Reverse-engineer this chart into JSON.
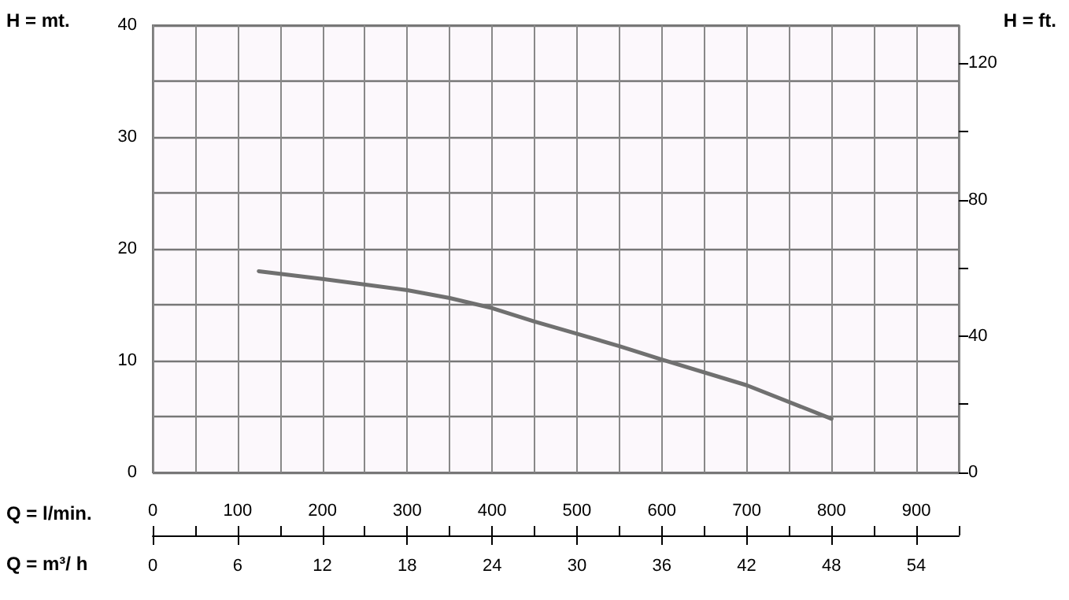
{
  "chart_data": {
    "type": "line",
    "xlabel": "Q = l/min.",
    "x2label": "Q = m³/ h",
    "ylabel": "H = mt.",
    "y2label": "H = ft.",
    "x": [
      125,
      200,
      300,
      350,
      400,
      450,
      500,
      550,
      600,
      700,
      800
    ],
    "series": [
      {
        "color": "#707070",
        "values": [
          18,
          17.3,
          16.3,
          15.6,
          14.7,
          13.5,
          12.4,
          11.3,
          10.1,
          7.8,
          4.8
        ]
      }
    ],
    "xlim": [
      0,
      950
    ],
    "xticks": [
      0,
      {
        "value": 50,
        "label": null
      },
      100,
      {
        "value": 150,
        "label": null
      },
      200,
      {
        "value": 250,
        "label": null
      },
      300,
      {
        "value": 350,
        "label": null
      },
      400,
      {
        "value": 450,
        "label": null
      },
      500,
      {
        "value": 550,
        "label": null
      },
      600,
      {
        "value": 650,
        "label": null
      },
      700,
      {
        "value": 750,
        "label": null
      },
      800,
      {
        "value": 850,
        "label": null
      },
      900,
      {
        "value": 950,
        "label": null
      }
    ],
    "x2lim": [
      0,
      57
    ],
    "x2ticks": [
      0,
      6,
      12,
      18,
      24,
      30,
      36,
      42,
      48,
      54
    ],
    "ylim": [
      0,
      40
    ],
    "yticks": [
      0,
      {
        "value": 5,
        "label": null
      },
      10,
      {
        "value": 15,
        "label": null
      },
      20,
      {
        "value": 25,
        "label": null
      },
      30,
      {
        "value": 35,
        "label": null
      },
      40
    ],
    "y2lim": [
      0,
      131.2
    ],
    "y2ticks": [
      0,
      {
        "value": 20,
        "label": null
      },
      40,
      {
        "value": 60,
        "label": null
      },
      80,
      {
        "value": 100,
        "label": null
      },
      120
    ],
    "grid": true,
    "marker": "none",
    "line_style": "solid"
  }
}
